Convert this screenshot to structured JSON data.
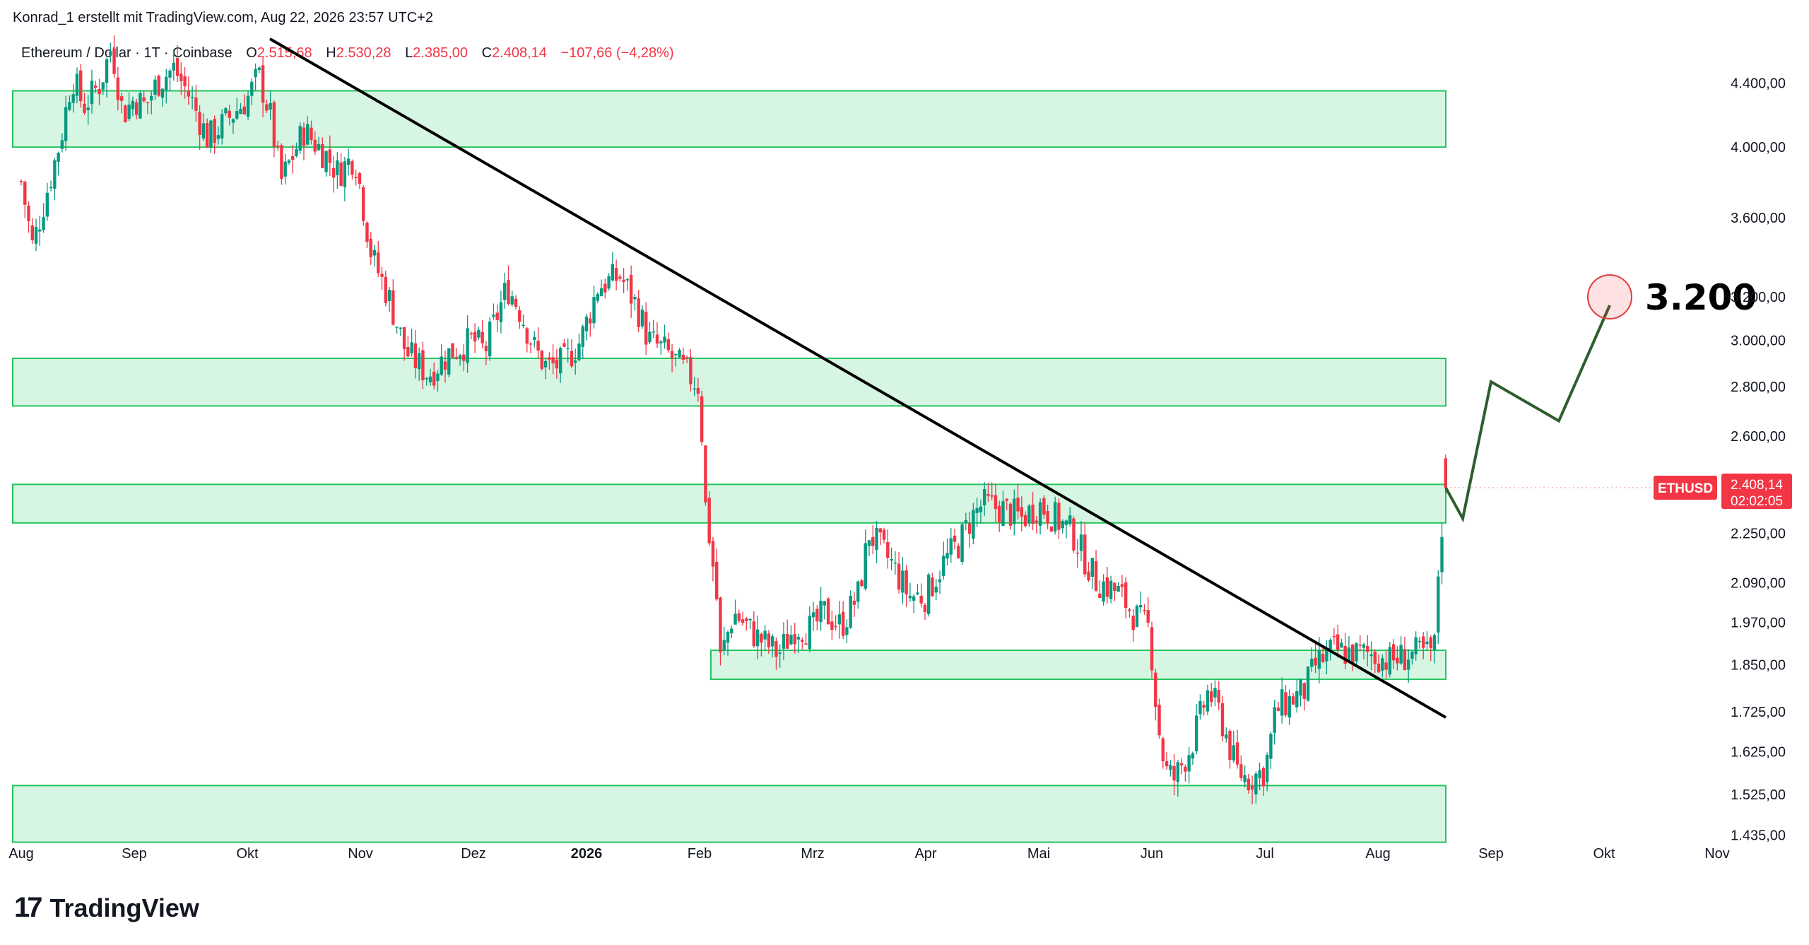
{
  "header": {
    "credit": "Konrad_1 erstellt mit TradingView.com, Aug 22, 2026 23:57 UTC+2"
  },
  "symbol": {
    "title": "Ethereum / Dollar · 1T · Coinbase",
    "o_label": "O",
    "o_value": "2.515,68",
    "h_label": "H",
    "h_value": "2.530,28",
    "l_label": "L",
    "l_value": "2.385,00",
    "c_label": "C",
    "c_value": "2.408,14",
    "change": "−107,66 (−4,28%)"
  },
  "price_tag": {
    "ticker": "ETHUSD",
    "value": "2.408,14",
    "timer": "02:02:05",
    "color": "#f23645"
  },
  "target": {
    "label": "3.200"
  },
  "footer": {
    "logo_mark": "17",
    "logo_text": "TradingView"
  },
  "colors": {
    "up": "#089981",
    "down": "#f23645",
    "zone_fill": "#d6f5e3",
    "zone_border": "#22c55e",
    "trendline": "#000000",
    "projection": "#2e5e2e",
    "target_circle": "#e03c3c"
  },
  "chart_data": {
    "type": "candlestick",
    "title": "Ethereum / Dollar · 1T · Coinbase",
    "y_scale": "log",
    "ylim": [
      1400,
      4700
    ],
    "y_ticks": [
      {
        "value": 4400,
        "label": "4.400,00"
      },
      {
        "value": 4000,
        "label": "4.000,00"
      },
      {
        "value": 3600,
        "label": "3.600,00"
      },
      {
        "value": 3200,
        "label": "3.200,00"
      },
      {
        "value": 3000,
        "label": "3.000,00"
      },
      {
        "value": 2800,
        "label": "2.800,00"
      },
      {
        "value": 2600,
        "label": "2.600,00"
      },
      {
        "value": 2250,
        "label": "2.250,00"
      },
      {
        "value": 2090,
        "label": "2.090,00"
      },
      {
        "value": 1970,
        "label": "1.970,00"
      },
      {
        "value": 1850,
        "label": "1.850,00"
      },
      {
        "value": 1725,
        "label": "1.725,00"
      },
      {
        "value": 1625,
        "label": "1.625,00"
      },
      {
        "value": 1525,
        "label": "1.525,00"
      },
      {
        "value": 1435,
        "label": "1.435,00"
      }
    ],
    "x_ticks": [
      {
        "month": 0,
        "label": "Aug",
        "bold": false
      },
      {
        "month": 1,
        "label": "Sep",
        "bold": false
      },
      {
        "month": 2,
        "label": "Okt",
        "bold": false
      },
      {
        "month": 3,
        "label": "Nov",
        "bold": false
      },
      {
        "month": 4,
        "label": "Dez",
        "bold": false
      },
      {
        "month": 5,
        "label": "2026",
        "bold": true
      },
      {
        "month": 6,
        "label": "Feb",
        "bold": false
      },
      {
        "month": 7,
        "label": "Mrz",
        "bold": false
      },
      {
        "month": 8,
        "label": "Apr",
        "bold": false
      },
      {
        "month": 9,
        "label": "Mai",
        "bold": false
      },
      {
        "month": 10,
        "label": "Jun",
        "bold": false
      },
      {
        "month": 11,
        "label": "Jul",
        "bold": false
      },
      {
        "month": 12,
        "label": "Aug",
        "bold": false
      },
      {
        "month": 13,
        "label": "Sep",
        "bold": false
      },
      {
        "month": 14,
        "label": "Okt",
        "bold": false
      },
      {
        "month": 15,
        "label": "Nov",
        "bold": false
      }
    ],
    "close_anchors": [
      [
        0.0,
        3800
      ],
      [
        0.1,
        3450
      ],
      [
        0.25,
        3800
      ],
      [
        0.35,
        4050
      ],
      [
        0.45,
        4450
      ],
      [
        0.55,
        4250
      ],
      [
        0.7,
        4400
      ],
      [
        0.8,
        4650
      ],
      [
        0.9,
        4200
      ],
      [
        1.0,
        4300
      ],
      [
        1.1,
        4250
      ],
      [
        1.2,
        4400
      ],
      [
        1.35,
        4500
      ],
      [
        1.5,
        4300
      ],
      [
        1.65,
        4050
      ],
      [
        1.8,
        4150
      ],
      [
        2.0,
        4300
      ],
      [
        2.1,
        4450
      ],
      [
        2.2,
        4200
      ],
      [
        2.3,
        3800
      ],
      [
        2.5,
        4100
      ],
      [
        2.7,
        3950
      ],
      [
        2.8,
        3850
      ],
      [
        2.95,
        3950
      ],
      [
        3.1,
        3400
      ],
      [
        3.25,
        3200
      ],
      [
        3.4,
        2950
      ],
      [
        3.6,
        2850
      ],
      [
        3.8,
        2950
      ],
      [
        4.0,
        3000
      ],
      [
        4.1,
        2950
      ],
      [
        4.2,
        3100
      ],
      [
        4.3,
        3250
      ],
      [
        4.4,
        3150
      ],
      [
        4.55,
        2950
      ],
      [
        4.65,
        2880
      ],
      [
        4.8,
        2900
      ],
      [
        4.95,
        3000
      ],
      [
        5.1,
        3250
      ],
      [
        5.3,
        3300
      ],
      [
        5.45,
        3150
      ],
      [
        5.55,
        3000
      ],
      [
        5.7,
        2950
      ],
      [
        5.9,
        2850
      ],
      [
        6.0,
        2800
      ],
      [
        6.05,
        2350
      ],
      [
        6.1,
        2200
      ],
      [
        6.15,
        2050
      ],
      [
        6.18,
        1860
      ],
      [
        6.3,
        2000
      ],
      [
        6.5,
        1930
      ],
      [
        6.7,
        1880
      ],
      [
        6.85,
        1960
      ],
      [
        7.0,
        1950
      ],
      [
        7.1,
        2000
      ],
      [
        7.25,
        1960
      ],
      [
        7.4,
        2050
      ],
      [
        7.5,
        2250
      ],
      [
        7.7,
        2150
      ],
      [
        7.85,
        2050
      ],
      [
        8.0,
        2050
      ],
      [
        8.15,
        2150
      ],
      [
        8.3,
        2220
      ],
      [
        8.4,
        2300
      ],
      [
        8.5,
        2350
      ],
      [
        8.7,
        2330
      ],
      [
        8.85,
        2300
      ],
      [
        9.0,
        2350
      ],
      [
        9.15,
        2300
      ],
      [
        9.3,
        2250
      ],
      [
        9.5,
        2100
      ],
      [
        9.7,
        2060
      ],
      [
        9.85,
        1990
      ],
      [
        9.98,
        1950
      ],
      [
        10.05,
        1700
      ],
      [
        10.12,
        1580
      ],
      [
        10.2,
        1560
      ],
      [
        10.35,
        1640
      ],
      [
        10.5,
        1780
      ],
      [
        10.6,
        1720
      ],
      [
        10.75,
        1580
      ],
      [
        10.85,
        1560
      ],
      [
        11.0,
        1580
      ],
      [
        11.1,
        1730
      ],
      [
        11.2,
        1750
      ],
      [
        11.35,
        1780
      ],
      [
        11.45,
        1850
      ],
      [
        11.6,
        1890
      ],
      [
        11.8,
        1880
      ],
      [
        11.95,
        1880
      ],
      [
        12.1,
        1860
      ],
      [
        12.3,
        1880
      ],
      [
        12.45,
        1880
      ],
      [
        12.5,
        1900
      ],
      [
        12.55,
        2250
      ],
      [
        12.58,
        2300
      ],
      [
        12.6,
        2408.14
      ]
    ],
    "last_candle": {
      "open": 2515.68,
      "high": 2530.28,
      "low": 2385.0,
      "close": 2408.14
    },
    "zones": [
      {
        "low": 4000,
        "high": 4350
      },
      {
        "low": 2720,
        "high": 2920
      },
      {
        "low": 2285,
        "high": 2420
      },
      {
        "low": 1810,
        "high": 1890
      },
      {
        "low": 1420,
        "high": 1545
      }
    ],
    "trendline": [
      [
        2.2,
        4700
      ],
      [
        12.6,
        1710
      ]
    ],
    "projection_path": [
      [
        12.6,
        2408
      ],
      [
        12.75,
        2300
      ],
      [
        13.0,
        2820
      ],
      [
        13.6,
        2660
      ],
      [
        14.05,
        3160
      ]
    ],
    "target_point": [
      14.05,
      3200
    ],
    "last_price_line": 2408.14
  }
}
